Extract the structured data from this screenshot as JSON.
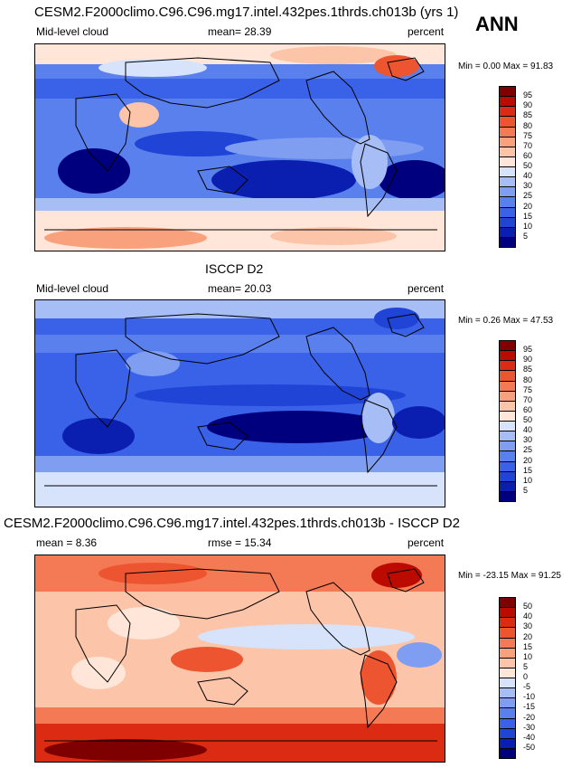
{
  "header": {
    "season": "ANN"
  },
  "chart_data": [
    {
      "type": "heatmap",
      "title": "CESM2.F2000climo.C96.C96.mg17.intel.432pes.1thrds.ch013b (yrs 1)",
      "left_label": "Mid-level cloud",
      "center_label": "mean=  28.39",
      "units": "percent",
      "minmax": "Min =   0.00 Max =  91.83",
      "mean": 28.39,
      "min": 0.0,
      "max": 91.83,
      "colorbar": {
        "labels": [
          "5",
          "10",
          "15",
          "20",
          "25",
          "30",
          "40",
          "50",
          "60",
          "70",
          "75",
          "80",
          "85",
          "90",
          "95"
        ],
        "colors": [
          "#00007f",
          "#0a1fb0",
          "#1f44d6",
          "#3a62e8",
          "#5a80ee",
          "#7f9ef2",
          "#a7bdf5",
          "#d6e3fa",
          "#ffe6d8",
          "#fcc4a8",
          "#f9a07d",
          "#f47a55",
          "#ec5530",
          "#db2b12",
          "#bb0b00",
          "#7f0000"
        ]
      }
    },
    {
      "type": "heatmap",
      "title": "ISCCP D2",
      "left_label": "Mid-level cloud",
      "center_label": "mean=  20.03",
      "units": "percent",
      "minmax": "Min =   0.26 Max =  47.53",
      "mean": 20.03,
      "min": 0.26,
      "max": 47.53,
      "colorbar": {
        "labels": [
          "5",
          "10",
          "15",
          "20",
          "25",
          "30",
          "40",
          "50",
          "60",
          "70",
          "75",
          "80",
          "85",
          "90",
          "95"
        ],
        "colors": [
          "#00007f",
          "#0a1fb0",
          "#1f44d6",
          "#3a62e8",
          "#5a80ee",
          "#7f9ef2",
          "#a7bdf5",
          "#d6e3fa",
          "#ffe6d8",
          "#fcc4a8",
          "#f9a07d",
          "#f47a55",
          "#ec5530",
          "#db2b12",
          "#bb0b00",
          "#7f0000"
        ]
      }
    },
    {
      "type": "heatmap",
      "title": "CESM2.F2000climo.C96.C96.mg17.intel.432pes.1thrds.ch013b - ISCCP D2",
      "left_label": "mean =   8.36",
      "center_label": "rmse =  15.34",
      "units": "percent",
      "minmax": "Min = -23.15 Max =  91.25",
      "mean": 8.36,
      "rmse": 15.34,
      "min": -23.15,
      "max": 91.25,
      "colorbar": {
        "labels": [
          "-50",
          "-40",
          "-30",
          "-20",
          "-15",
          "-10",
          "-5",
          "0",
          "5",
          "10",
          "15",
          "20",
          "30",
          "40",
          "50"
        ],
        "colors": [
          "#00007f",
          "#0a1fb0",
          "#1f44d6",
          "#3a62e8",
          "#5a80ee",
          "#7f9ef2",
          "#a7bdf5",
          "#d6e3fa",
          "#ffe6d8",
          "#fcc4a8",
          "#f9a07d",
          "#f47a55",
          "#ec5530",
          "#db2b12",
          "#bb0b00",
          "#7f0000"
        ]
      }
    }
  ]
}
